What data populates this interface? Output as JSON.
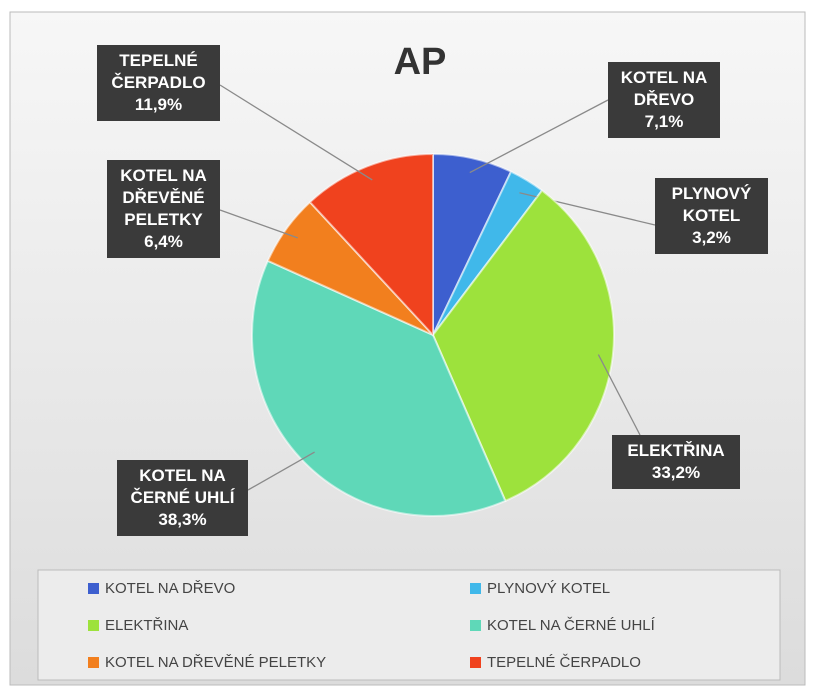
{
  "chart_data": {
    "type": "pie",
    "title": "AP",
    "categories": [
      "KOTEL NA DŘEVO",
      "PLYNOVÝ KOTEL",
      "ELEKTŘINA",
      "KOTEL NA ČERNÉ UHLÍ",
      "KOTEL NA DŘEVĚNÉ PELETKY",
      "TEPELNÉ ČERPADLO"
    ],
    "values": [
      7.1,
      3.2,
      33.2,
      38.3,
      6.4,
      11.9
    ],
    "value_labels": [
      "7,1%",
      "3,2%",
      "33,2%",
      "38,3%",
      "6,4%",
      "11,9%"
    ],
    "colors": [
      "#3d5fcf",
      "#40b8ea",
      "#9de23c",
      "#5fd8b8",
      "#f27f1e",
      "#f0421e"
    ],
    "legend": "bottom"
  }
}
